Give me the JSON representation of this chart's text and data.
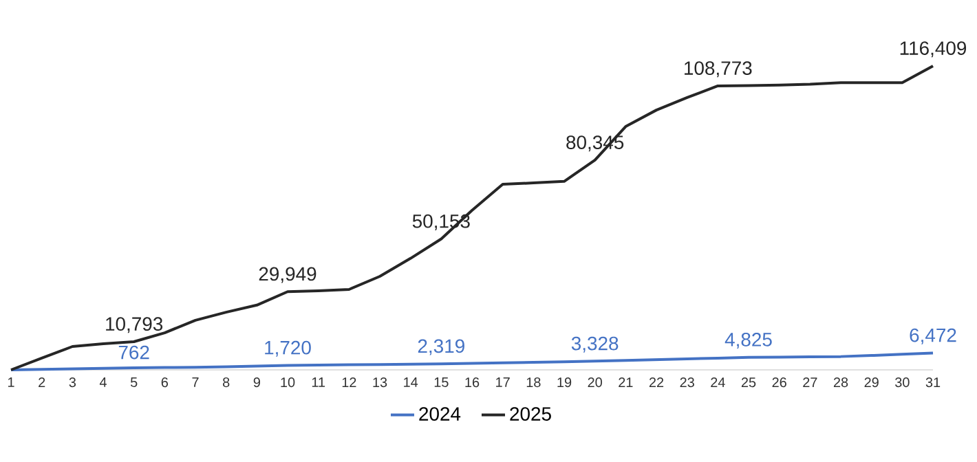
{
  "chart_data": {
    "type": "line",
    "categories": [
      "1",
      "2",
      "3",
      "4",
      "5",
      "6",
      "7",
      "8",
      "9",
      "10",
      "11",
      "12",
      "13",
      "14",
      "15",
      "16",
      "17",
      "18",
      "19",
      "20",
      "21",
      "22",
      "23",
      "24",
      "25",
      "26",
      "27",
      "28",
      "29",
      "30",
      "31"
    ],
    "series": [
      {
        "name": "2024",
        "color": "#4472c4",
        "values": [
          0,
          200,
          400,
          600,
          762,
          900,
          1000,
          1200,
          1450,
          1720,
          1850,
          1950,
          2050,
          2150,
          2319,
          2500,
          2700,
          2900,
          3100,
          3328,
          3600,
          3900,
          4200,
          4500,
          4825,
          4900,
          5000,
          5100,
          5500,
          6000,
          6472
        ],
        "value_labels": [
          null,
          null,
          null,
          null,
          "762",
          null,
          null,
          null,
          null,
          "1,720",
          null,
          null,
          null,
          null,
          "2,319",
          null,
          null,
          null,
          null,
          "3,328",
          null,
          null,
          null,
          null,
          "4,825",
          null,
          null,
          null,
          null,
          null,
          "6,472"
        ]
      },
      {
        "name": "2025",
        "color": "#262626",
        "values": [
          0,
          4500,
          8950,
          10000,
          10793,
          14200,
          19000,
          22100,
          24800,
          29949,
          30300,
          30800,
          35800,
          42700,
          50153,
          61100,
          71100,
          71600,
          72200,
          80345,
          93200,
          99500,
          104300,
          108773,
          108900,
          109100,
          109400,
          110000,
          110000,
          110000,
          116409
        ],
        "value_labels": [
          null,
          null,
          null,
          null,
          "10,793",
          null,
          null,
          null,
          null,
          "29,949",
          null,
          null,
          null,
          null,
          "50,153",
          null,
          null,
          null,
          null,
          "80,345",
          null,
          null,
          null,
          "108,773",
          null,
          null,
          null,
          null,
          null,
          null,
          "116,409"
        ]
      }
    ],
    "legend": "bottom",
    "marker": "none",
    "line_style": "solid",
    "grid": false
  }
}
